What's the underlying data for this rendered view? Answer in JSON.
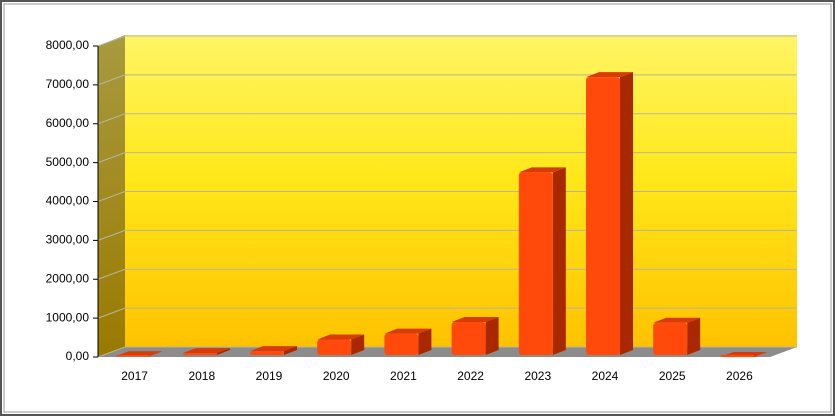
{
  "chart_data": {
    "type": "bar3d",
    "categories": [
      "2017",
      "2018",
      "2019",
      "2020",
      "2021",
      "2022",
      "2023",
      "2024",
      "2025",
      "2026"
    ],
    "values": [
      20,
      100,
      150,
      450,
      600,
      900,
      4750,
      7200,
      880,
      0
    ],
    "color": "#ff4a0c",
    "ylim": [
      0,
      8000
    ],
    "yticks": [
      {
        "value": 0,
        "label": "0,00"
      },
      {
        "value": 1000,
        "label": "1000,00"
      },
      {
        "value": 2000,
        "label": "2000,00"
      },
      {
        "value": 3000,
        "label": "3000,00"
      },
      {
        "value": 4000,
        "label": "4000,00"
      },
      {
        "value": 5000,
        "label": "5000,00"
      },
      {
        "value": 6000,
        "label": "6000,00"
      },
      {
        "value": 7000,
        "label": "7000,00"
      },
      {
        "value": 8000,
        "label": "8000,00"
      }
    ],
    "grid": true
  }
}
